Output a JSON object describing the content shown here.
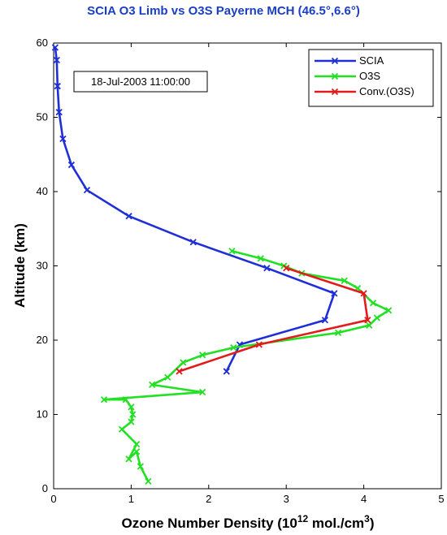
{
  "chart_data": {
    "type": "line",
    "title": "SCIA O3 Limb vs O3S Payerne MCH (46.5°,6.6°)",
    "xlabel_main": "Ozone Number Density (10",
    "xlabel_exp1": "12",
    "xlabel_mid": " mol./cm",
    "xlabel_exp2": "3",
    "xlabel_end": ")",
    "ylabel": "Altitude (km)",
    "xlim": [
      0,
      5
    ],
    "ylim": [
      0,
      60
    ],
    "xticks": [
      "0",
      "1",
      "2",
      "3",
      "4",
      "5"
    ],
    "yticks": [
      "0",
      "10",
      "20",
      "30",
      "40",
      "50",
      "60"
    ],
    "grid": false,
    "legend_position": "top-right",
    "annotation": "18-Jul-2003 11:00:00",
    "colors": {
      "title": "#1a3fc0",
      "axes": "#000000"
    },
    "series": [
      {
        "name": "SCIA",
        "color": "#1f2fd6",
        "x": [
          2.23,
          2.4,
          3.5,
          3.62,
          2.75,
          1.8,
          0.97,
          0.43,
          0.23,
          0.12,
          0.07,
          0.05,
          0.04,
          0.02
        ],
        "y": [
          15.8,
          19.4,
          22.7,
          26.3,
          29.7,
          33.2,
          36.7,
          40.2,
          43.6,
          47.1,
          50.7,
          54.2,
          57.7,
          59.4
        ]
      },
      {
        "name": "O3S",
        "color": "#22e022",
        "x": [
          1.22,
          1.12,
          1.07,
          0.97,
          1.07,
          0.88,
          1.0,
          1.02,
          1.0,
          0.93,
          0.65,
          1.92,
          1.27,
          1.47,
          1.67,
          1.92,
          2.32,
          3.67,
          4.07,
          4.17,
          4.32,
          4.12,
          3.92,
          3.75,
          3.2,
          2.97,
          2.67,
          2.3
        ],
        "y": [
          1,
          3,
          5,
          4,
          6,
          8,
          9,
          10,
          11,
          12,
          12,
          13,
          14,
          15,
          17,
          18,
          19,
          21,
          22,
          23,
          24,
          25,
          27,
          28,
          29,
          30,
          31,
          32
        ]
      },
      {
        "name": "Conv.(O3S)",
        "color": "#e01c1c",
        "x": [
          1.62,
          2.65,
          4.05,
          4.0,
          3.0
        ],
        "y": [
          15.8,
          19.4,
          22.7,
          26.3,
          29.7
        ]
      }
    ]
  }
}
